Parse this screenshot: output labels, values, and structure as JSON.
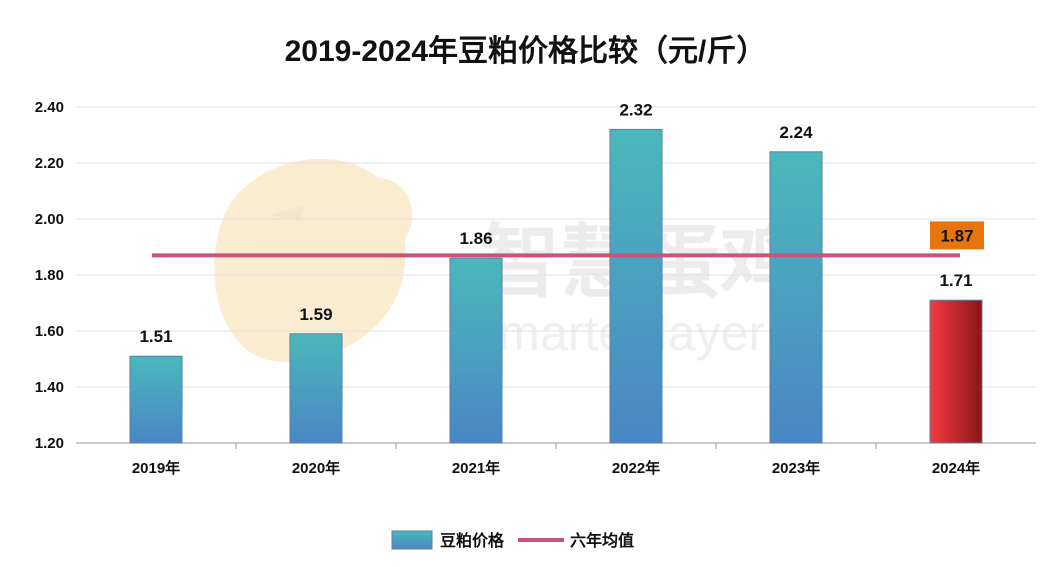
{
  "chart_data": {
    "type": "bar",
    "title": "2019-2024年豆粕价格比较（元/斤）",
    "categories": [
      "2019年",
      "2020年",
      "2021年",
      "2022年",
      "2023年",
      "2024年"
    ],
    "series": [
      {
        "name": "豆粕价格",
        "values": [
          1.51,
          1.59,
          1.86,
          2.32,
          2.24,
          1.71
        ]
      }
    ],
    "reference_line": {
      "name": "六年均值",
      "value": 1.87,
      "label": "1.87"
    },
    "data_labels": [
      "1.51",
      "1.59",
      "1.86",
      "2.32",
      "2.24",
      "1.71"
    ],
    "y_ticks": [
      "1.20",
      "1.40",
      "1.60",
      "1.80",
      "2.00",
      "2.20",
      "2.40"
    ],
    "ylim": [
      1.2,
      2.4
    ],
    "grid": true,
    "legend_position": "bottom",
    "highlight_category": "2024年",
    "colors": {
      "bar_top": "#4ab8bc",
      "bar_bottom": "#4a86c6",
      "highlight_left": "#f53a3f",
      "highlight_right": "#8a1616",
      "avg_line": "#c85579",
      "avg_label_bg": "#e8740e"
    }
  },
  "watermark": {
    "text_cn": "智慧蛋鸡",
    "text_en": "Smarter layer"
  }
}
